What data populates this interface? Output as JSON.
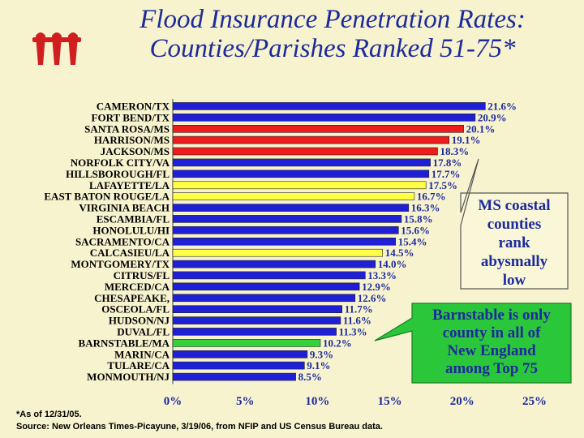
{
  "slide": {
    "title_line1": "Flood Insurance Penetration Rates:",
    "title_line2": "Counties/Parishes Ranked 51-75*",
    "footnote_line1": "*As of 12/31/05.",
    "footnote_line2": "Source: New Orleans Times-Picayune, 3/19/06, from NFIP and US Census Bureau data.",
    "logo_icon": "iii-logo-icon"
  },
  "callouts": {
    "ms": {
      "line1": "MS coastal",
      "line2": "counties",
      "line3": "rank",
      "line4": "abysmally",
      "line5": "low"
    },
    "barnstable": {
      "line1": "Barnstable is only",
      "line2": "county in all of",
      "line3": "New England",
      "line4": "among Top 75"
    }
  },
  "colors": {
    "title": "#1d2a9b",
    "bar_default": "#1f1fd6",
    "bar_highlight_ms": "#ee1c1c",
    "bar_highlight_la": "#ffff44",
    "bar_highlight_ma": "#33d23a",
    "callout_fill": "#f9f7d8",
    "callout_barnstable_fill": "#2bc73a",
    "background": "#f7f3cf"
  },
  "chart_data": {
    "type": "bar",
    "orientation": "horizontal",
    "categories": [
      "CAMERON/TX",
      "FORT BEND/TX",
      "SANTA ROSA/MS",
      "HARRISON/MS",
      "JACKSON/MS",
      "NORFOLK CITY/VA",
      "HILLSBOROUGH/FL",
      "LAFAYETTE/LA",
      "EAST BATON ROUGE/LA",
      "VIRGINIA BEACH",
      "ESCAMBIA/FL",
      "HONOLULU/HI",
      "SACRAMENTO/CA",
      "CALCASIEU/LA",
      "MONTGOMERY/TX",
      "CITRUS/FL",
      "MERCED/CA",
      "CHESAPEAKE,",
      "OSCEOLA/FL",
      "HUDSON/NJ",
      "DUVAL/FL",
      "BARNSTABLE/MA",
      "MARIN/CA",
      "TULARE/CA",
      "MONMOUTH/NJ"
    ],
    "values": [
      21.6,
      20.9,
      20.1,
      19.1,
      18.3,
      17.8,
      17.7,
      17.5,
      16.7,
      16.3,
      15.8,
      15.6,
      15.4,
      14.5,
      14.0,
      13.3,
      12.9,
      12.6,
      11.7,
      11.6,
      11.3,
      10.2,
      9.3,
      9.1,
      8.5
    ],
    "value_labels": [
      "21.6%",
      "20.9%",
      "20.1%",
      "19.1%",
      "18.3%",
      "17.8%",
      "17.7%",
      "17.5%",
      "16.7%",
      "16.3%",
      "15.8%",
      "15.6%",
      "15.4%",
      "14.5%",
      "14.0%",
      "13.3%",
      "12.9%",
      "12.6%",
      "11.7%",
      "11.6%",
      "11.3%",
      "10.2%",
      "9.3%",
      "9.1%",
      "8.5%"
    ],
    "highlight": [
      "none",
      "none",
      "ms",
      "ms",
      "ms",
      "none",
      "none",
      "la",
      "la",
      "none",
      "none",
      "none",
      "none",
      "la",
      "none",
      "none",
      "none",
      "none",
      "none",
      "none",
      "none",
      "ma",
      "none",
      "none",
      "none"
    ],
    "xlim": [
      0,
      25
    ],
    "xticks": [
      0,
      5,
      10,
      15,
      20,
      25
    ],
    "xtick_labels": [
      "0%",
      "5%",
      "10%",
      "15%",
      "20%",
      "25%"
    ],
    "xlabel": "",
    "ylabel": ""
  }
}
